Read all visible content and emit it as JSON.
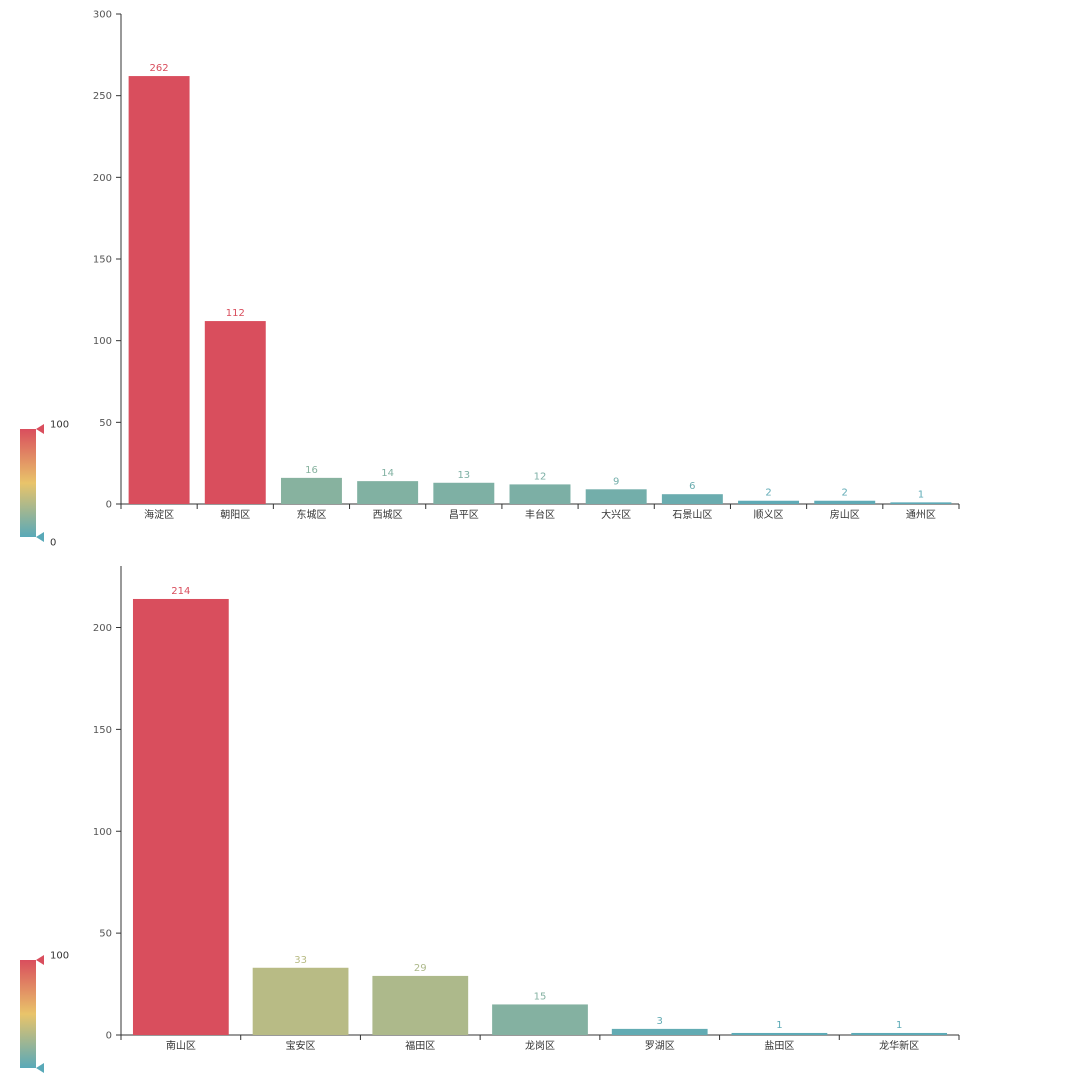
{
  "chart_data": [
    {
      "type": "bar",
      "categories": [
        "海淀区",
        "朝阳区",
        "东城区",
        "西城区",
        "昌平区",
        "丰台区",
        "大兴区",
        "石景山区",
        "顺义区",
        "房山区",
        "通州区"
      ],
      "values": [
        262,
        112,
        16,
        14,
        13,
        12,
        9,
        6,
        2,
        2,
        1
      ],
      "ylim": [
        0,
        300
      ],
      "yticks": [
        0,
        50,
        100,
        150,
        200,
        250,
        300
      ],
      "visual_map": {
        "min": 0,
        "max": 100,
        "min_label": "0",
        "max_label": "100"
      },
      "grid": false
    },
    {
      "type": "bar",
      "categories": [
        "南山区",
        "宝安区",
        "福田区",
        "龙岗区",
        "罗湖区",
        "盐田区",
        "龙华新区"
      ],
      "values": [
        214,
        33,
        29,
        15,
        3,
        1,
        1
      ],
      "ylim": [
        0,
        240
      ],
      "yticks": [
        0,
        50,
        100,
        150,
        200
      ],
      "visual_map": {
        "min": 0,
        "max": 100,
        "min_label": "",
        "max_label": "100"
      },
      "grid": false
    }
  ],
  "colors": {
    "low": "#59a9b8",
    "mid": "#e9c46a",
    "high": "#d94e5d",
    "axis": "#333333",
    "tick_label": "#555555"
  }
}
